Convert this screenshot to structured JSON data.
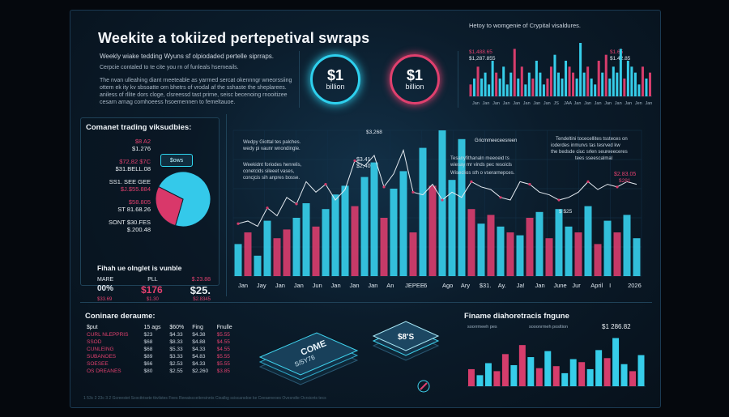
{
  "header": {
    "title": "Weekite a tokiized pertepetival swraps",
    "subtitle": "Weekly wiake tedding Wyuns sf olpiodaded pertelle siprraps.",
    "para1": "Cerpcie contaled to te cite you rn of funleals hsemeails.",
    "para2": [
      "The nvan ulleahing diant rneeteable as yarrned sercat okennngr wneorssiing",
      "ottem ek ity kv sbsoatte orn bhetrs of vrodal af the sshaste the sheplarees.",
      "aniless of rllite dors cloge, clsreessd tast prirne, seisc becenoing rnooitizee",
      "cesarn arnag comhoeess hsoemennen to femeltauoe."
    ]
  },
  "badges": [
    {
      "big": "$1",
      "small": "billion",
      "ring": "#2ed0ee"
    },
    {
      "big": "$1",
      "small": "billion",
      "ring": "#e0406e"
    }
  ],
  "top_right_chart": {
    "title": "Hetoy to womgenie of Crypital visaldures.",
    "labels": [
      "$1,488.65",
      "$1,287.855"
    ],
    "labels_right": [
      "$1.65",
      "$1.42.85"
    ],
    "months": [
      "Jan",
      "Jan",
      "Jan",
      "Jan",
      "Jan",
      "Jan",
      "Jan",
      "Jan",
      "JS",
      "JAA",
      "Jan",
      "Jan",
      "Jan",
      "Jan",
      "Jan",
      "Jan",
      "Jen",
      "Jan"
    ],
    "values": [
      2,
      3,
      5,
      3,
      4,
      2,
      6,
      4,
      3,
      5,
      2,
      4,
      8,
      3,
      5,
      2,
      4,
      3,
      6,
      4,
      2,
      3,
      5,
      7,
      4,
      3,
      6,
      5,
      4,
      3,
      9,
      4,
      5,
      3,
      2,
      6,
      4,
      7,
      3,
      5,
      4,
      8,
      3,
      6,
      5,
      4,
      2,
      5,
      3,
      4
    ]
  },
  "left_panel": {
    "title": "Comanet trading viksudbies:",
    "values": [
      {
        "t": "$8 A2",
        "c": "pink"
      },
      {
        "t": "$1.276",
        "c": "white"
      },
      {
        "t": "$72,82 $7C",
        "c": "pink"
      },
      {
        "t": "$31.BELL.08",
        "c": "white"
      },
      {
        "t": "SS1. SEE GEE",
        "c": "white"
      },
      {
        "t": "$J.$55.884",
        "c": "pink"
      },
      {
        "t": "$58.805",
        "c": "pink"
      },
      {
        "t": "ST 81.68.26",
        "c": "white"
      },
      {
        "t": "SONT $30.FES",
        "c": "white"
      },
      {
        "t": "$.200.48",
        "c": "white"
      }
    ],
    "chip": "$ows",
    "pie": {
      "slices": [
        {
          "value": 72,
          "color": "#34c9ea"
        },
        {
          "value": 28,
          "color": "#d9386a"
        }
      ]
    },
    "balance": {
      "title": "Fihah ue olnglet is vunble",
      "labels": [
        "MARE",
        "PLL",
        "$.23.88"
      ],
      "nums": [
        "00%",
        "$176",
        "$25."
      ],
      "small": [
        "$33.69",
        "$1.30",
        "$2.8345"
      ]
    }
  },
  "main_chart": {
    "annotations": [
      "Wedpy Giottal tes palches.",
      "wedy pi vaunr wnondingle.",
      "Weekidnt foriodes henrelis,",
      "conetclds sileeet vases,",
      "concjcis sih anpres bosse.",
      "$3,268",
      "$3.41",
      "$2,40",
      "Gricmmeeceesreen",
      "Tesanyfithanaln meeoeid ts",
      "wiesay mr vinds pec resoicls",
      "Wiseclios sth o vserarnepces.",
      "Tendeltini tocecellites tssteces on",
      "ioderdes inmurvs tas tesrved kw",
      "the bedsde ciuc srlen seureeeceres",
      "tees sseescalmal",
      "$2.83.05",
      "$281",
      "$ $25"
    ],
    "x_labels": [
      "Jan",
      "Jay",
      "Jan",
      "Jan",
      "Jun",
      "Jan",
      "Jan",
      "Jan",
      "An",
      "JEPEE",
      "6",
      "Ago",
      "Ary",
      "$31.",
      "Ay.",
      "Ja!",
      "Jan",
      "June",
      "Jur",
      "April",
      "I",
      "2026"
    ],
    "bars": [
      {
        "v": 22,
        "c": "c"
      },
      {
        "v": 30,
        "c": "p"
      },
      {
        "v": 14,
        "c": "c"
      },
      {
        "v": 38,
        "c": "c"
      },
      {
        "v": 26,
        "c": "p"
      },
      {
        "v": 32,
        "c": "p"
      },
      {
        "v": 40,
        "c": "c"
      },
      {
        "v": 50,
        "c": "c"
      },
      {
        "v": 34,
        "c": "p"
      },
      {
        "v": 46,
        "c": "c"
      },
      {
        "v": 56,
        "c": "c"
      },
      {
        "v": 62,
        "c": "c"
      },
      {
        "v": 48,
        "c": "p"
      },
      {
        "v": 68,
        "c": "c"
      },
      {
        "v": 78,
        "c": "c"
      },
      {
        "v": 40,
        "c": "p"
      },
      {
        "v": 60,
        "c": "c"
      },
      {
        "v": 72,
        "c": "c"
      },
      {
        "v": 30,
        "c": "p"
      },
      {
        "v": 88,
        "c": "c"
      },
      {
        "v": 62,
        "c": "p"
      },
      {
        "v": 100,
        "c": "c"
      },
      {
        "v": 66,
        "c": "c"
      },
      {
        "v": 94,
        "c": "c"
      },
      {
        "v": 46,
        "c": "p"
      },
      {
        "v": 36,
        "c": "c"
      },
      {
        "v": 42,
        "c": "p"
      },
      {
        "v": 34,
        "c": "c"
      },
      {
        "v": 30,
        "c": "p"
      },
      {
        "v": 28,
        "c": "c"
      },
      {
        "v": 40,
        "c": "p"
      },
      {
        "v": 44,
        "c": "c"
      },
      {
        "v": 26,
        "c": "p"
      },
      {
        "v": 46,
        "c": "c"
      },
      {
        "v": 34,
        "c": "c"
      },
      {
        "v": 30,
        "c": "p"
      },
      {
        "v": 48,
        "c": "c"
      },
      {
        "v": 22,
        "c": "p"
      },
      {
        "v": 38,
        "c": "c"
      },
      {
        "v": 30,
        "c": "p"
      },
      {
        "v": 42,
        "c": "c"
      },
      {
        "v": 26,
        "c": "c"
      }
    ],
    "line": [
      40,
      42,
      38,
      52,
      46,
      60,
      55,
      72,
      64,
      70,
      58,
      66,
      88,
      84,
      92,
      68,
      78,
      96,
      64,
      62,
      70,
      58,
      64,
      60,
      72,
      68,
      66,
      60,
      58,
      72,
      70,
      64,
      62,
      58,
      60,
      64,
      72,
      66,
      70,
      68,
      72,
      70
    ]
  },
  "table": {
    "title": "Coninare deraume:",
    "headers": [
      "$put",
      "15 ags",
      "$60%",
      "Fing",
      "Fnulle"
    ],
    "rows": [
      [
        "CURL NLEPPRIS",
        "$23",
        "$4.33",
        "$4.38",
        "$5.55"
      ],
      [
        "SSOD",
        "$68",
        "$8.33",
        "$4.88",
        "$4.55"
      ],
      [
        "CUNLEING",
        "$68",
        "$5.33",
        "$4.33",
        "$4.55"
      ],
      [
        "SUBANOES",
        "$89",
        "$3.33",
        "$4.83",
        "$5.55"
      ],
      [
        "SOESEE",
        "$66",
        "$2.53",
        "$4.33",
        "$5.55"
      ],
      [
        "OS DREANES",
        "$80",
        "$2.55",
        "$2.260",
        "$3.85"
      ]
    ]
  },
  "center_art": {
    "card1": "COME",
    "card2": "$8'S",
    "card1_sub": "S/5Y76"
  },
  "bottom_right_chart": {
    "title": "Finame diahoretracis fngune",
    "legend": [
      "soorrmeeh pes",
      "sooonrmeh posltion"
    ],
    "label": "$1 286.82",
    "bars": [
      {
        "v": 34,
        "c": "p"
      },
      {
        "v": 22,
        "c": "c"
      },
      {
        "v": 46,
        "c": "c"
      },
      {
        "v": 30,
        "c": "p"
      },
      {
        "v": 64,
        "c": "p"
      },
      {
        "v": 42,
        "c": "c"
      },
      {
        "v": 82,
        "c": "p"
      },
      {
        "v": 58,
        "c": "c"
      },
      {
        "v": 36,
        "c": "p"
      },
      {
        "v": 70,
        "c": "c"
      },
      {
        "v": 40,
        "c": "p"
      },
      {
        "v": 26,
        "c": "c"
      },
      {
        "v": 54,
        "c": "c"
      },
      {
        "v": 48,
        "c": "p"
      },
      {
        "v": 34,
        "c": "c"
      },
      {
        "v": 72,
        "c": "c"
      },
      {
        "v": 56,
        "c": "p"
      },
      {
        "v": 96,
        "c": "c"
      },
      {
        "v": 44,
        "c": "c"
      },
      {
        "v": 30,
        "c": "p"
      },
      {
        "v": 62,
        "c": "c"
      }
    ]
  },
  "footer": "1 53c 2 23c 3 2 Gcreestet Scocttrisete tkvilstes Fees     Reeatscceitersinnts Ciealbg sciscarsdoe ke  Ceeaeneoes Ovesndte Ocrsicnts tecs",
  "colors": {
    "cyan": "#36cde9",
    "pink": "#d63d6c",
    "line": "#e6ecf2"
  },
  "chart_data": [
    {
      "type": "bar",
      "title": "",
      "values": [
        22,
        30,
        14,
        38,
        26,
        32,
        40,
        50,
        34,
        46,
        56,
        62,
        48,
        68,
        78,
        40,
        60,
        72,
        30,
        88,
        62,
        100,
        66,
        94,
        46,
        36,
        42,
        34,
        30,
        28,
        40,
        44,
        26,
        46,
        34,
        30,
        48,
        22,
        38,
        30,
        42,
        26
      ],
      "xlabel": "",
      "ylabel": ""
    },
    {
      "type": "bar",
      "title": "Finame diahoretracis fngune",
      "values": [
        34,
        22,
        46,
        30,
        64,
        42,
        82,
        58,
        36,
        70,
        40,
        26,
        54,
        48,
        34,
        72,
        56,
        96,
        44,
        30,
        62
      ]
    },
    {
      "type": "pie",
      "values": [
        72,
        28
      ]
    }
  ]
}
